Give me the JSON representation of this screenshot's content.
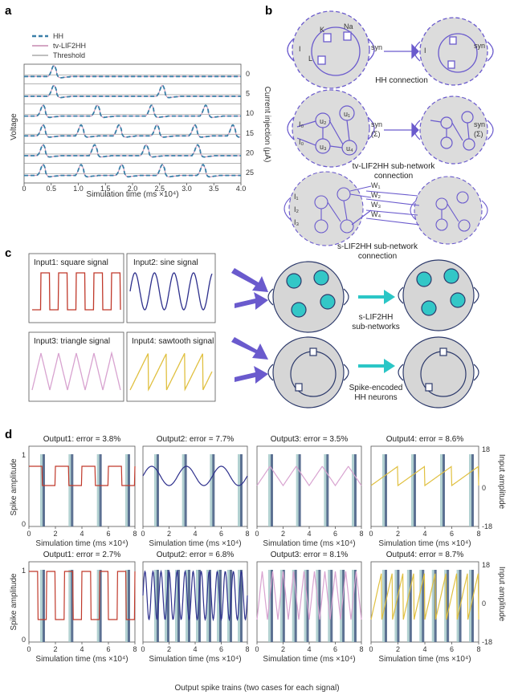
{
  "panels": {
    "a": "a",
    "b": "b",
    "c": "c",
    "d": "d"
  },
  "panel_a": {
    "legend": [
      "HH",
      "tv-LIF2HH",
      "Threshold"
    ],
    "ylabel": "Voltage",
    "xlabel": "Simulation time (ms ×10⁴)",
    "right_label": "Current injection (μA)",
    "currents": [
      "0",
      "5",
      "10",
      "15",
      "20",
      "25"
    ],
    "xticks": [
      "0",
      "0.5",
      "1.0",
      "1.5",
      "2.0",
      "2.5",
      "3.0",
      "3.5",
      "4.0"
    ]
  },
  "panel_b": {
    "captions": [
      "HH connection",
      "tv-LIF2HH sub-network\nconnection",
      "s-LIF2HH sub-network\nconnection"
    ],
    "caption_lines": [
      [
        "HH connection"
      ],
      [
        "tv-LIF2HH sub-network",
        "connection"
      ],
      [
        "s-LIF2HH sub-network",
        "connection"
      ]
    ],
    "labels": {
      "K": "K",
      "Na": "Na",
      "L": "L",
      "I": "I",
      "syn": "syn",
      "sigma": "(Σ)",
      "I0": "I₀",
      "u1": "u₁",
      "u2": "u₂",
      "u3": "u₃",
      "u4": "u₄",
      "INa": "Iₙₐ",
      "IK": "Iₖ",
      "IL": "Iₗ",
      "I1": "I₁",
      "I2": "I₂",
      "I3": "I₃",
      "W1": "W₁",
      "W2": "W₂",
      "W3": "W₃",
      "W4": "W₄"
    }
  },
  "panel_c": {
    "inputs": [
      "Input1: square signal",
      "Input2: sine signal",
      "Input3: triangle signal",
      "Input4: sawtooth signal"
    ],
    "top_label": [
      "s-LIF2HH",
      "sub-networks"
    ],
    "bottom_label": [
      "Spike-encoded",
      "HH neurons"
    ]
  },
  "panel_d": {
    "row1_titles": [
      "Output1: error = 3.8%",
      "Output2: error = 7.7%",
      "Output3: error = 3.5%",
      "Output4: error = 8.6%"
    ],
    "row2_titles": [
      "Output1: error = 2.7%",
      "Output2: error = 6.8%",
      "Output3: error = 8.1%",
      "Output4: error = 8.7%"
    ],
    "ylabel_left": "Spike amplitude",
    "ylabel_right": "Input amplitude",
    "xlabel": "Simulation time (ms ×10⁴)",
    "caption": "Output spike trains (two cases for each signal)",
    "xticks": [
      "0",
      "2",
      "4",
      "6",
      "8"
    ],
    "left_ticks": [
      "0",
      "1"
    ],
    "right_ticks": [
      "18",
      "0",
      "-18"
    ]
  },
  "colors": {
    "hh": "#3a7fa8",
    "lif": "#c58ab0",
    "threshold": "#aaaaaa",
    "square": "#c0392b",
    "sine": "#2d2f8c",
    "triangle": "#d8a3d0",
    "sawtooth": "#e0c040",
    "neuron": "#6a5acd",
    "cell_fill": "#dcdcdc",
    "cyan": "#33c7c7"
  }
}
